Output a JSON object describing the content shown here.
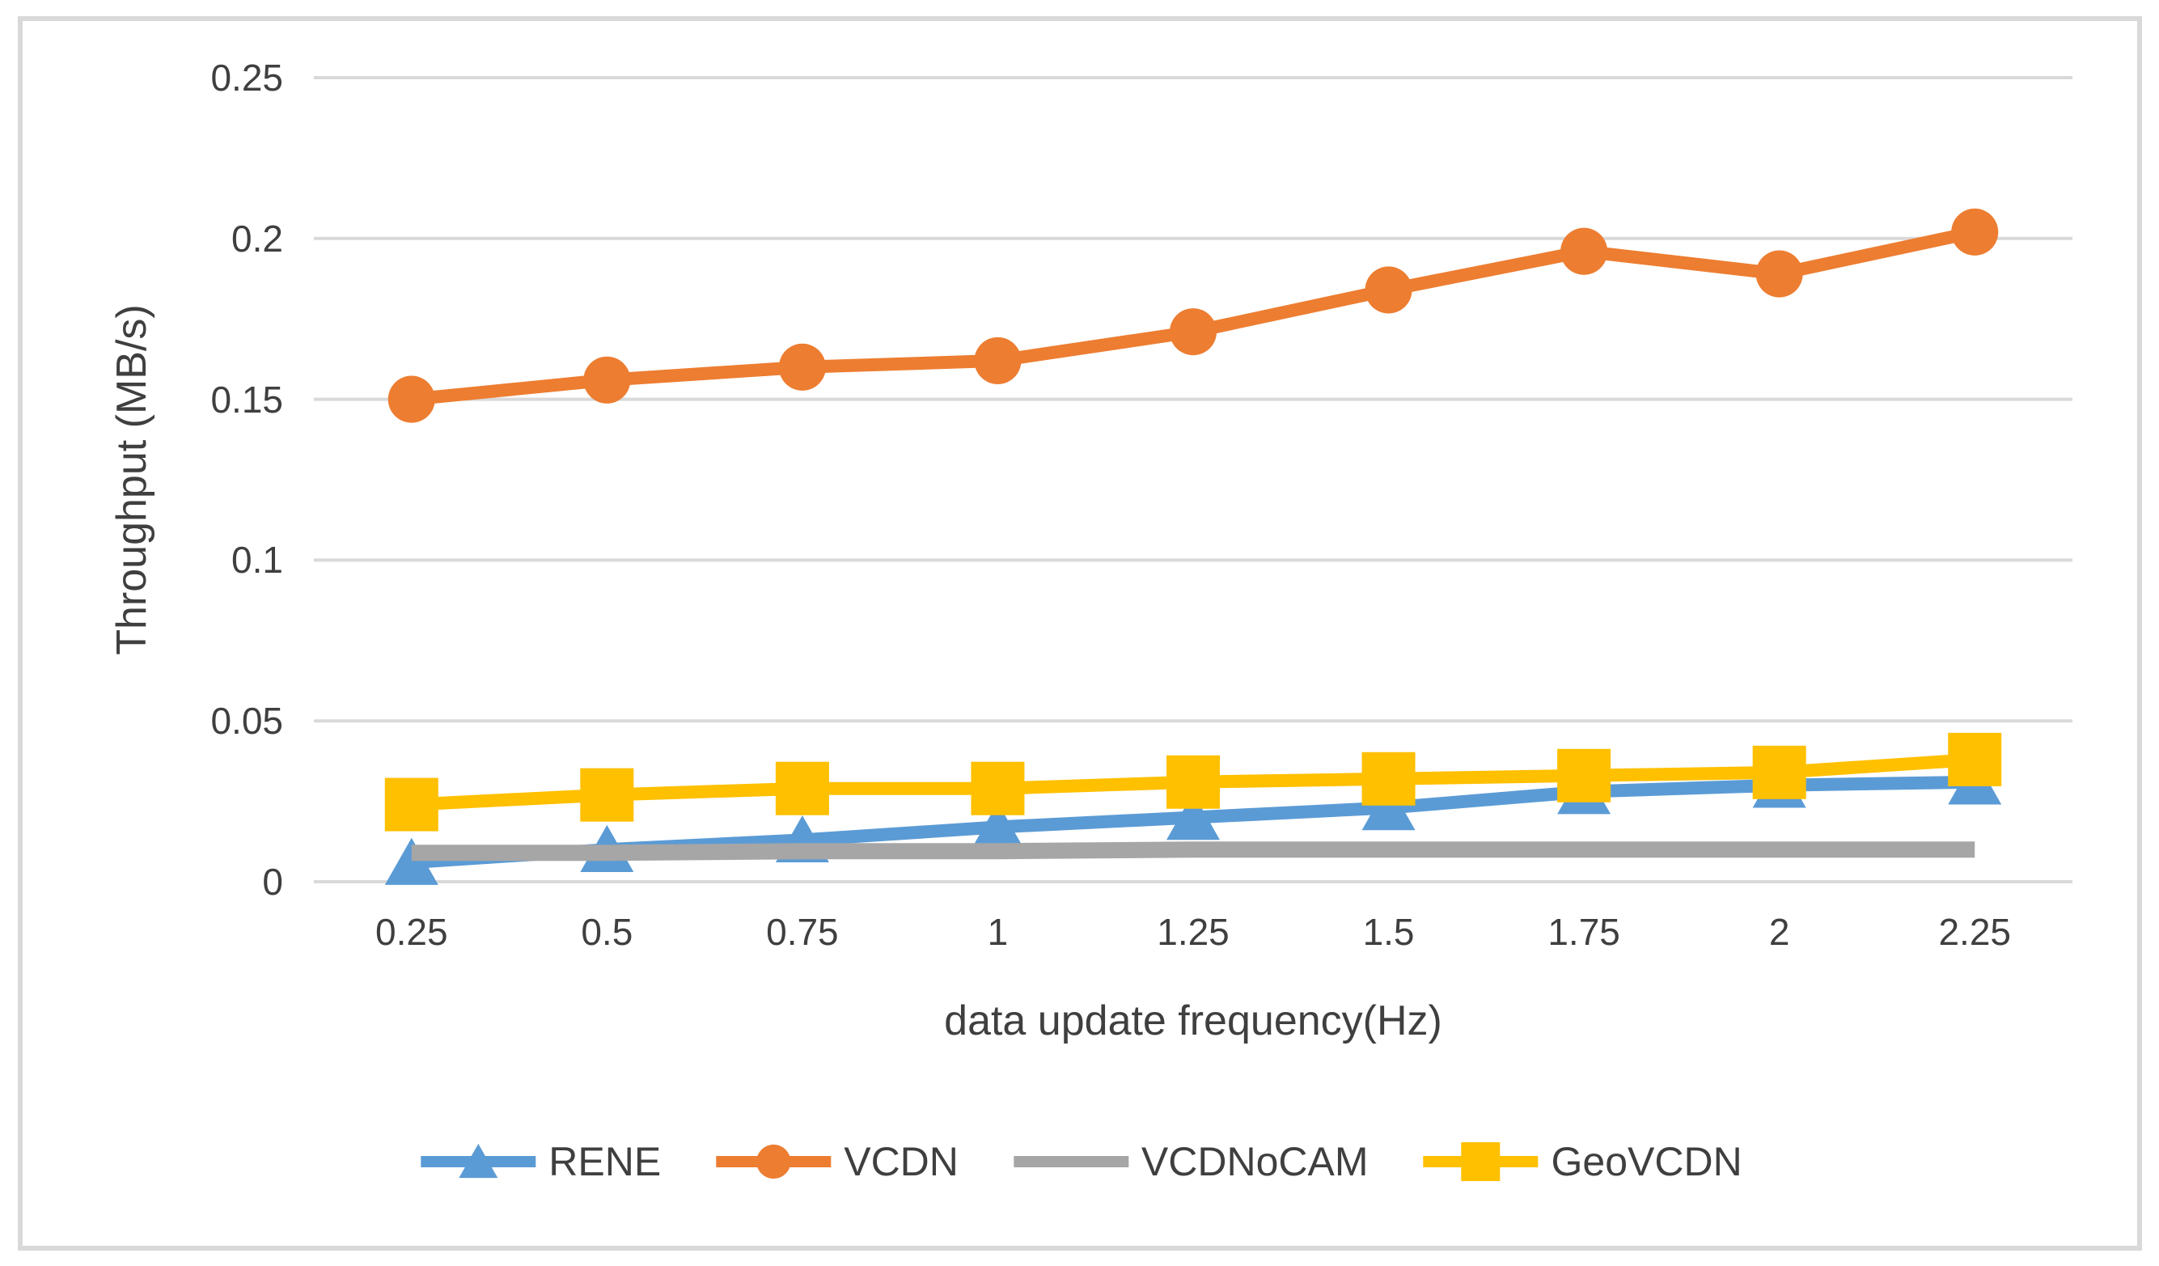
{
  "chart_data": {
    "type": "line",
    "title": "",
    "xlabel": "data update frequency(Hz)",
    "ylabel": "Throughput (MB/s)",
    "categories": [
      0.25,
      0.5,
      0.75,
      1,
      1.25,
      1.5,
      1.75,
      2,
      2.25
    ],
    "x_tick_labels": [
      "0.25",
      "0.5",
      "0.75",
      "1",
      "1.25",
      "1.5",
      "1.75",
      "2",
      "2.25"
    ],
    "y_ticks": [
      0,
      0.05,
      0.1,
      0.15,
      0.2,
      0.25
    ],
    "y_tick_labels": [
      "0",
      "0.05",
      "0.1",
      "0.15",
      "0.2",
      "0.25"
    ],
    "ylim": [
      0,
      0.25
    ],
    "grid": "horizontal",
    "legend_position": "bottom",
    "series": [
      {
        "name": "RENE",
        "color": "#5B9BD5",
        "marker": "triangle",
        "values": [
          0.006,
          0.01,
          0.013,
          0.017,
          0.02,
          0.023,
          0.028,
          0.03,
          0.031
        ]
      },
      {
        "name": "VCDN",
        "color": "#ED7D31",
        "marker": "circle",
        "values": [
          0.15,
          0.156,
          0.16,
          0.162,
          0.171,
          0.184,
          0.196,
          0.189,
          0.202
        ]
      },
      {
        "name": "VCDNoCAM",
        "color": "#A6A6A6",
        "marker": "none",
        "values": [
          0.009,
          0.009,
          0.0095,
          0.0095,
          0.01,
          0.01,
          0.01,
          0.01,
          0.01
        ]
      },
      {
        "name": "GeoVCDN",
        "color": "#FFC000",
        "marker": "square",
        "values": [
          0.024,
          0.027,
          0.029,
          0.029,
          0.031,
          0.032,
          0.033,
          0.034,
          0.038
        ]
      }
    ]
  },
  "colors": {
    "gridline": "#D9D9D9",
    "frame_border": "#D9D9D9",
    "text": "#3F3F3F",
    "background": "#FFFFFF"
  }
}
